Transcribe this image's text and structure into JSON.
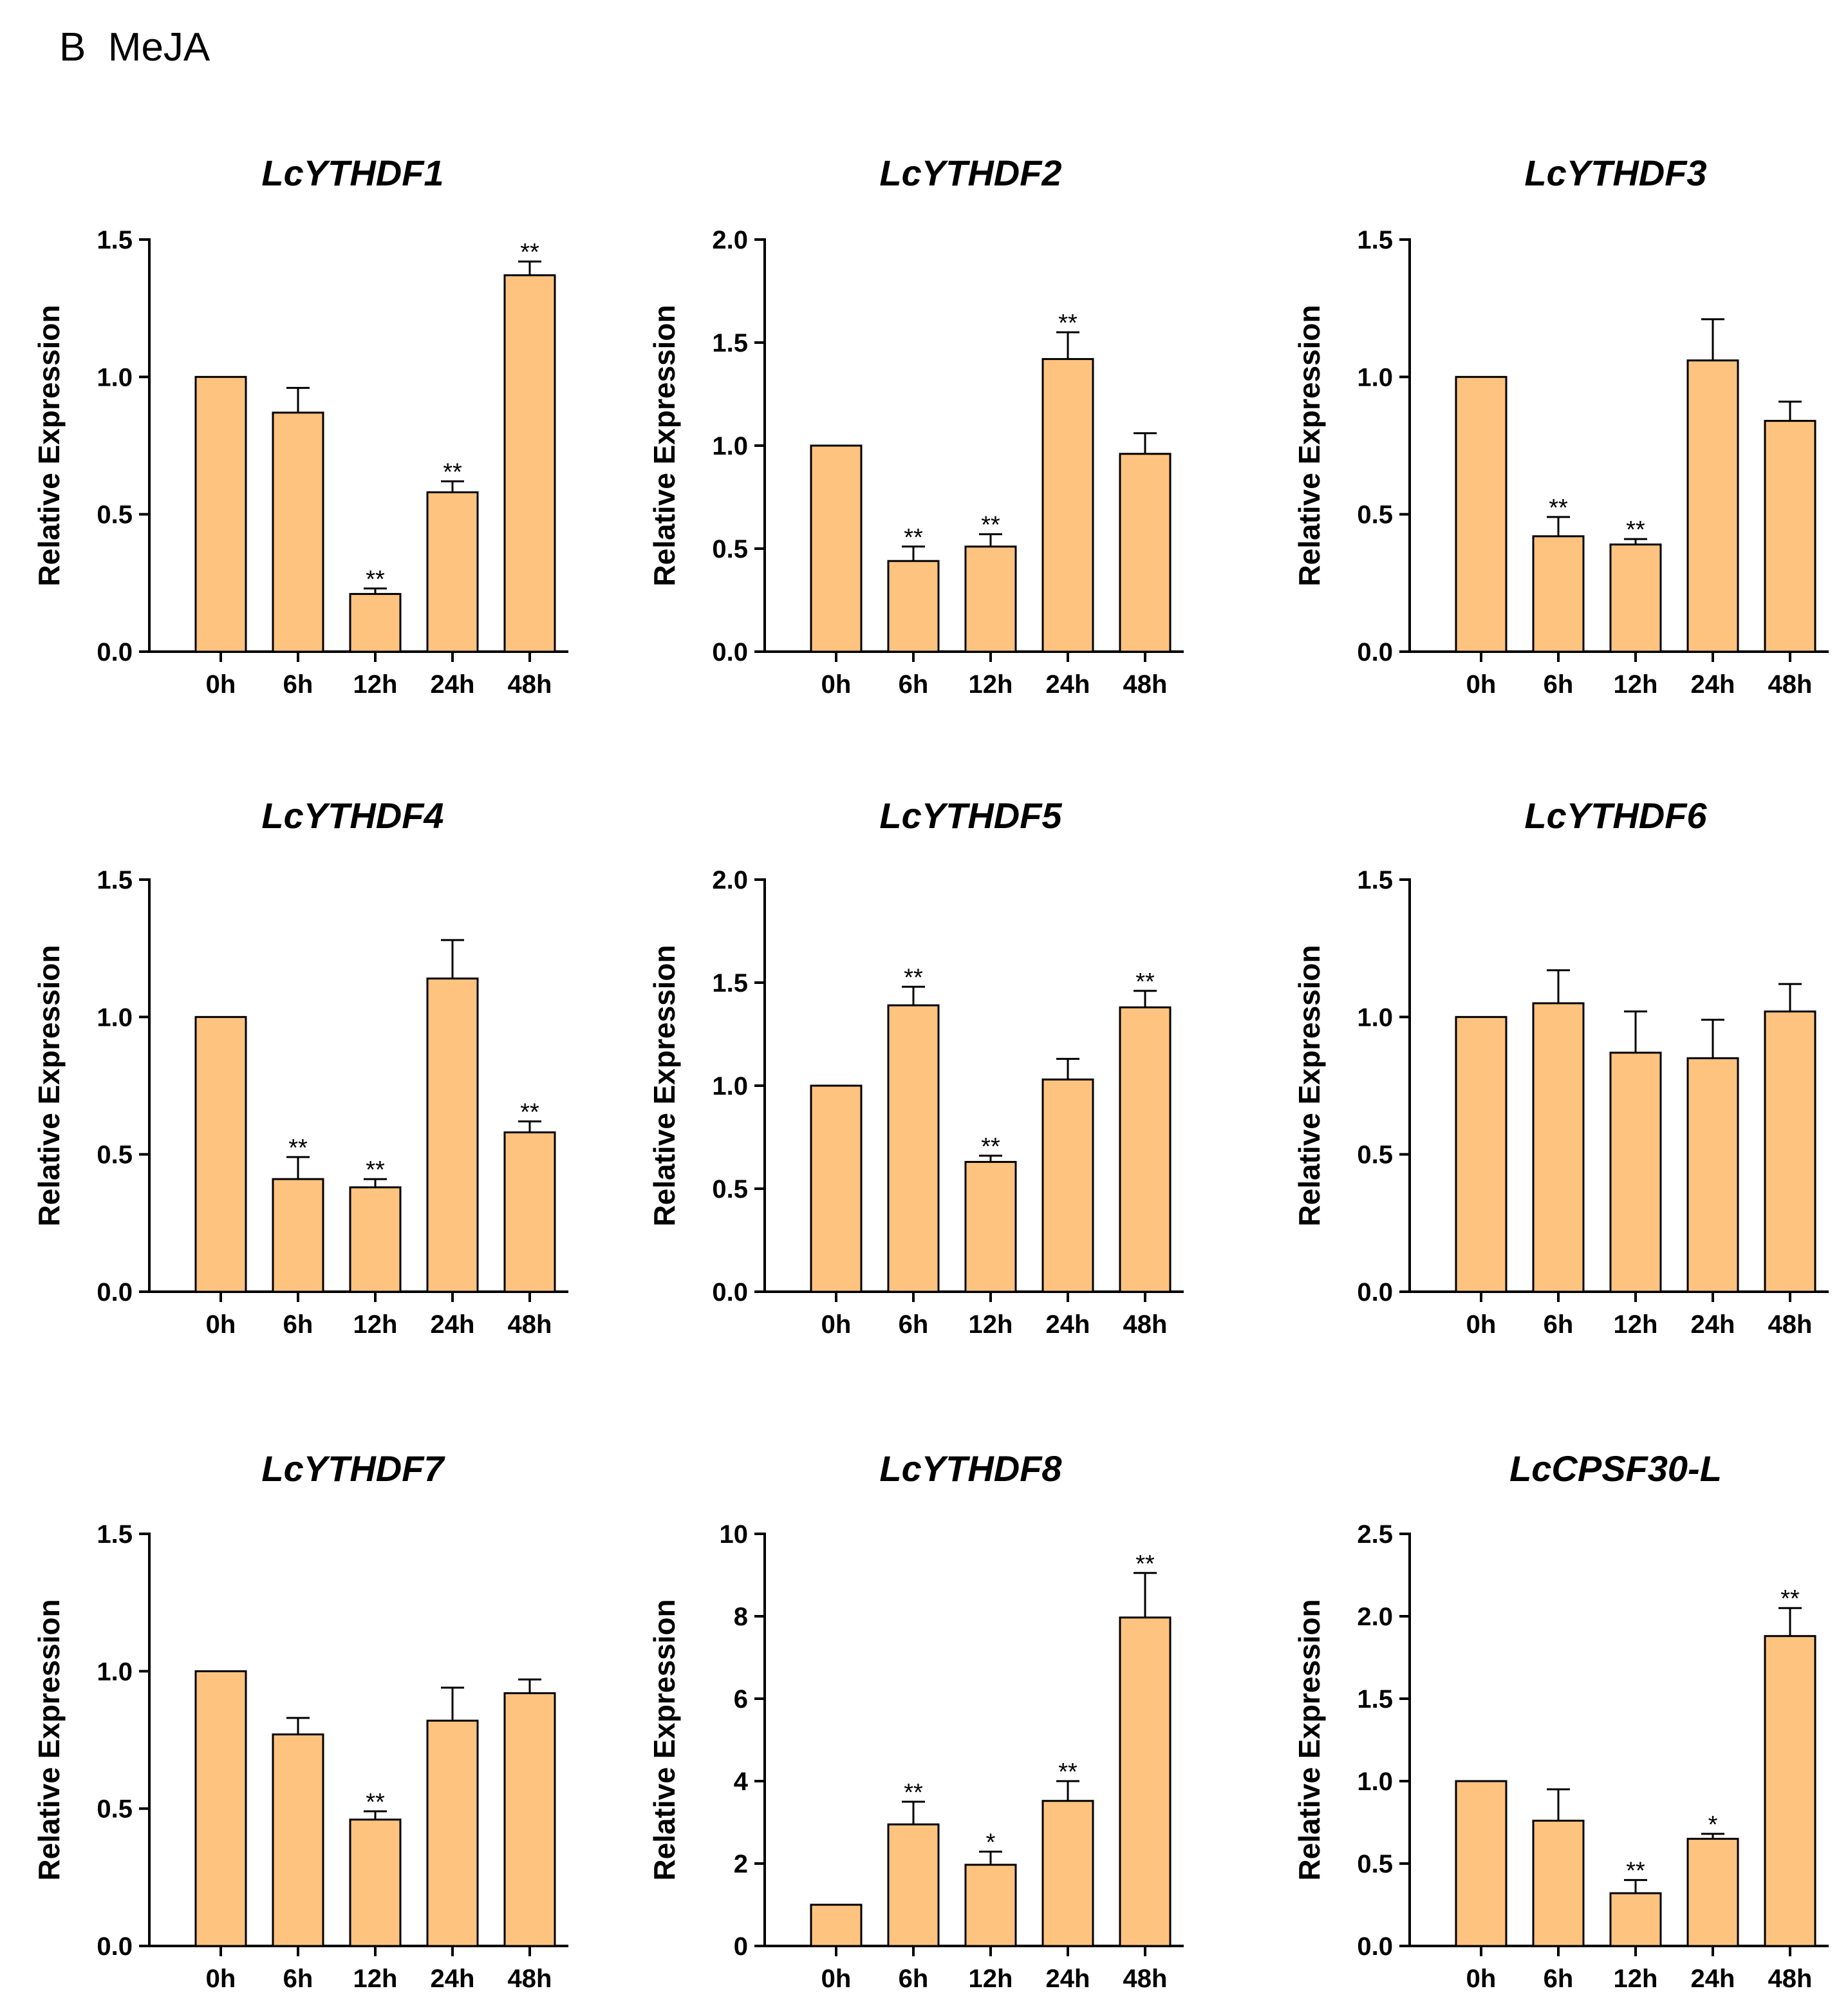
{
  "panel_label": "B  MeJA",
  "colors": {
    "bar_fill": "#FFC380",
    "stroke": "#000000"
  },
  "chart_data": [
    {
      "type": "bar",
      "title": "LcYTHDF1",
      "ylabel": "Relative Expression",
      "xlabel": "",
      "categories": [
        "0h",
        "6h",
        "12h",
        "24h",
        "48h"
      ],
      "ylim": [
        0,
        1.5
      ],
      "yticks": [
        0,
        0.5,
        1.0,
        1.5
      ],
      "ytick_labels": [
        "0.0",
        "0.5",
        "1.0",
        "1.5"
      ],
      "values": [
        1.0,
        0.87,
        0.21,
        0.58,
        1.37
      ],
      "errors": [
        0,
        0.09,
        0.02,
        0.04,
        0.05
      ],
      "significance": [
        "",
        "",
        "**",
        "**",
        "**"
      ]
    },
    {
      "type": "bar",
      "title": "LcYTHDF2",
      "ylabel": "Relative Expression",
      "xlabel": "",
      "categories": [
        "0h",
        "6h",
        "12h",
        "24h",
        "48h"
      ],
      "ylim": [
        0,
        2.0
      ],
      "yticks": [
        0,
        0.5,
        1.0,
        1.5,
        2.0
      ],
      "ytick_labels": [
        "0.0",
        "0.5",
        "1.0",
        "1.5",
        "2.0"
      ],
      "values": [
        1.0,
        0.44,
        0.51,
        1.42,
        0.96
      ],
      "errors": [
        0,
        0.07,
        0.06,
        0.13,
        0.1
      ],
      "significance": [
        "",
        "**",
        "**",
        "**",
        ""
      ]
    },
    {
      "type": "bar",
      "title": "LcYTHDF3",
      "ylabel": "Relative Expression",
      "xlabel": "",
      "categories": [
        "0h",
        "6h",
        "12h",
        "24h",
        "48h"
      ],
      "ylim": [
        0,
        1.5
      ],
      "yticks": [
        0,
        0.5,
        1.0,
        1.5
      ],
      "ytick_labels": [
        "0.0",
        "0.5",
        "1.0",
        "1.5"
      ],
      "values": [
        1.0,
        0.42,
        0.39,
        1.06,
        0.84
      ],
      "errors": [
        0,
        0.07,
        0.02,
        0.15,
        0.07
      ],
      "significance": [
        "",
        "**",
        "**",
        "",
        ""
      ]
    },
    {
      "type": "bar",
      "title": "LcYTHDF4",
      "ylabel": "Relative Expression",
      "xlabel": "",
      "categories": [
        "0h",
        "6h",
        "12h",
        "24h",
        "48h"
      ],
      "ylim": [
        0,
        1.5
      ],
      "yticks": [
        0,
        0.5,
        1.0,
        1.5
      ],
      "ytick_labels": [
        "0.0",
        "0.5",
        "1.0",
        "1.5"
      ],
      "values": [
        1.0,
        0.41,
        0.38,
        1.14,
        0.58
      ],
      "errors": [
        0,
        0.08,
        0.03,
        0.14,
        0.04
      ],
      "significance": [
        "",
        "**",
        "**",
        "",
        "**"
      ]
    },
    {
      "type": "bar",
      "title": "LcYTHDF5",
      "ylabel": "Relative Expression",
      "xlabel": "",
      "categories": [
        "0h",
        "6h",
        "12h",
        "24h",
        "48h"
      ],
      "ylim": [
        0,
        2.0
      ],
      "yticks": [
        0,
        0.5,
        1.0,
        1.5,
        2.0
      ],
      "ytick_labels": [
        "0.0",
        "0.5",
        "1.0",
        "1.5",
        "2.0"
      ],
      "values": [
        1.0,
        1.39,
        0.63,
        1.03,
        1.38
      ],
      "errors": [
        0,
        0.09,
        0.03,
        0.1,
        0.08
      ],
      "significance": [
        "",
        "**",
        "**",
        "",
        "**"
      ]
    },
    {
      "type": "bar",
      "title": "LcYTHDF6",
      "ylabel": "Relative Expression",
      "xlabel": "",
      "categories": [
        "0h",
        "6h",
        "12h",
        "24h",
        "48h"
      ],
      "ylim": [
        0,
        1.5
      ],
      "yticks": [
        0,
        0.5,
        1.0,
        1.5
      ],
      "ytick_labels": [
        "0.0",
        "0.5",
        "1.0",
        "1.5"
      ],
      "values": [
        1.0,
        1.05,
        0.87,
        0.85,
        1.02
      ],
      "errors": [
        0,
        0.12,
        0.15,
        0.14,
        0.1
      ],
      "significance": [
        "",
        "",
        "",
        "",
        ""
      ]
    },
    {
      "type": "bar",
      "title": "LcYTHDF7",
      "ylabel": "Relative Expression",
      "xlabel": "",
      "categories": [
        "0h",
        "6h",
        "12h",
        "24h",
        "48h"
      ],
      "ylim": [
        0,
        1.5
      ],
      "yticks": [
        0,
        0.5,
        1.0,
        1.5
      ],
      "ytick_labels": [
        "0.0",
        "0.5",
        "1.0",
        "1.5"
      ],
      "values": [
        1.0,
        0.77,
        0.46,
        0.82,
        0.92
      ],
      "errors": [
        0,
        0.06,
        0.03,
        0.12,
        0.05
      ],
      "significance": [
        "",
        "",
        "**",
        "",
        ""
      ]
    },
    {
      "type": "bar",
      "title": "LcYTHDF8",
      "ylabel": "Relative Expression",
      "xlabel": "",
      "categories": [
        "0h",
        "6h",
        "12h",
        "24h",
        "48h"
      ],
      "ylim": [
        0,
        10
      ],
      "yticks": [
        0,
        2,
        4,
        6,
        8,
        10
      ],
      "ytick_labels": [
        "0",
        "2",
        "4",
        "6",
        "8",
        "10"
      ],
      "values": [
        1.0,
        2.95,
        1.97,
        3.52,
        7.97
      ],
      "errors": [
        0,
        0.55,
        0.32,
        0.48,
        1.08
      ],
      "significance": [
        "",
        "**",
        "*",
        "**",
        "**"
      ]
    },
    {
      "type": "bar",
      "title": "LcCPSF30-L",
      "ylabel": "Relative Expression",
      "xlabel": "",
      "categories": [
        "0h",
        "6h",
        "12h",
        "24h",
        "48h"
      ],
      "ylim": [
        0,
        2.5
      ],
      "yticks": [
        0,
        0.5,
        1.0,
        1.5,
        2.0,
        2.5
      ],
      "ytick_labels": [
        "0.0",
        "0.5",
        "1.0",
        "1.5",
        "2.0",
        "2.5"
      ],
      "values": [
        1.0,
        0.76,
        0.32,
        0.65,
        1.88
      ],
      "errors": [
        0,
        0.19,
        0.08,
        0.03,
        0.17
      ],
      "significance": [
        "",
        "",
        "**",
        "*",
        "**"
      ]
    }
  ]
}
